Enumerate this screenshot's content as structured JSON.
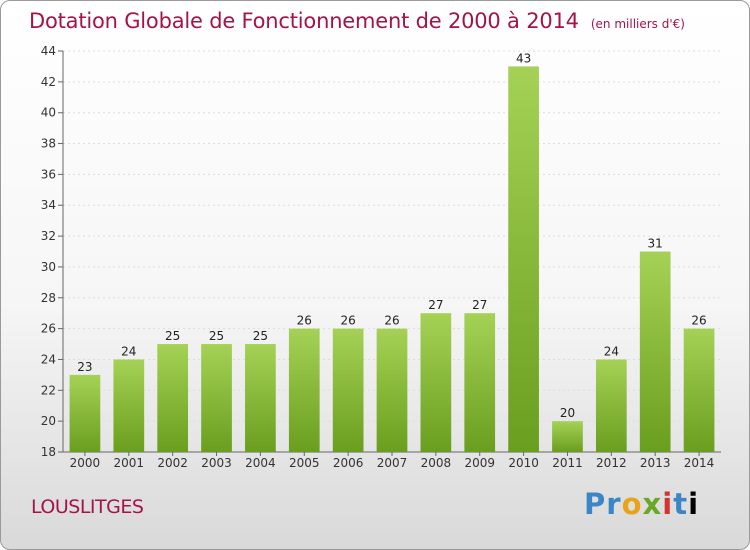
{
  "chart_data": {
    "type": "bar",
    "title": "Dotation Globale de Fonctionnement de 2000 à 2014",
    "unit": "(en milliers d'€)",
    "categories": [
      "2000",
      "2001",
      "2002",
      "2003",
      "2004",
      "2005",
      "2006",
      "2007",
      "2008",
      "2009",
      "2010",
      "2011",
      "2012",
      "2013",
      "2014"
    ],
    "values": [
      23,
      24,
      25,
      25,
      25,
      26,
      26,
      26,
      27,
      27,
      43,
      20,
      24,
      31,
      26
    ],
    "ylim": [
      18,
      44
    ],
    "yticks": [
      18,
      20,
      22,
      24,
      26,
      28,
      30,
      32,
      34,
      36,
      38,
      40,
      42,
      44
    ],
    "grid": true,
    "bar_color_top": "#a5d256",
    "bar_color_bottom": "#6a9e1e"
  },
  "commune": "LOUSLITGES",
  "logo": {
    "text": "Proxiti"
  }
}
